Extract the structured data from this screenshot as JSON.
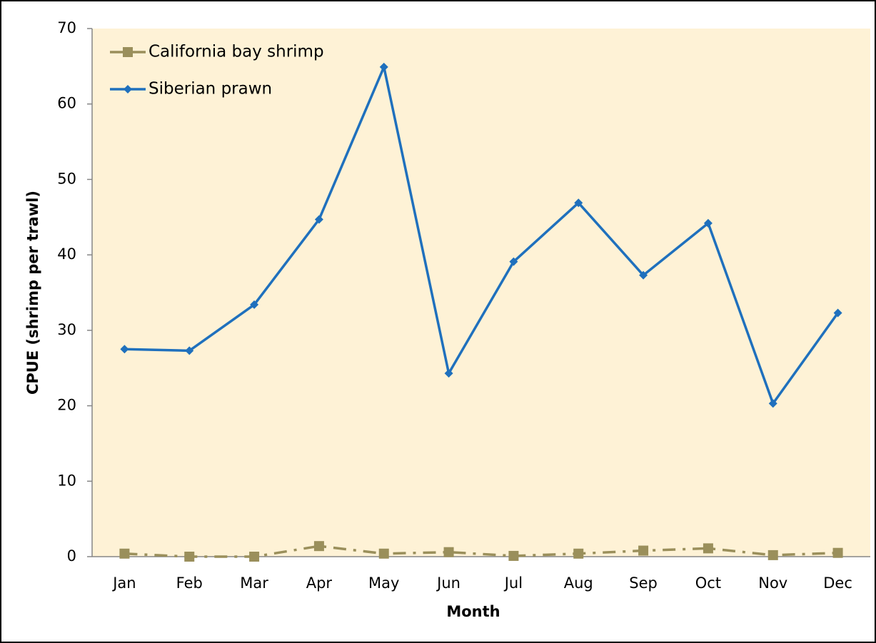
{
  "chart_data": {
    "type": "line",
    "ylabel": "CPUE (shrimp per trawl)",
    "xlabel": "Month",
    "categories": [
      "Jan",
      "Feb",
      "Mar",
      "Apr",
      "May",
      "Jun",
      "Jul",
      "Aug",
      "Sep",
      "Oct",
      "Nov",
      "Dec"
    ],
    "series": [
      {
        "name": "California bay shrimp",
        "color": "#9a8f5b",
        "linestyle": "dashdot",
        "marker": "square",
        "values": [
          0.4,
          0,
          0,
          1.4,
          0.4,
          0.6,
          0.1,
          0.4,
          0.8,
          1.1,
          0.2,
          0.5
        ]
      },
      {
        "name": "Siberian prawn",
        "color": "#1f70bd",
        "linestyle": "solid",
        "marker": "diamond",
        "values": [
          27.5,
          27.3,
          33.4,
          44.7,
          64.9,
          24.3,
          39.1,
          46.9,
          37.3,
          44.2,
          20.3,
          32.3
        ]
      }
    ],
    "ylim": [
      0,
      70
    ],
    "yticks": [
      0,
      10,
      20,
      30,
      40,
      50,
      60,
      70
    ],
    "grid": false,
    "legend": "upper left",
    "plot_background": "#fef2d6"
  }
}
